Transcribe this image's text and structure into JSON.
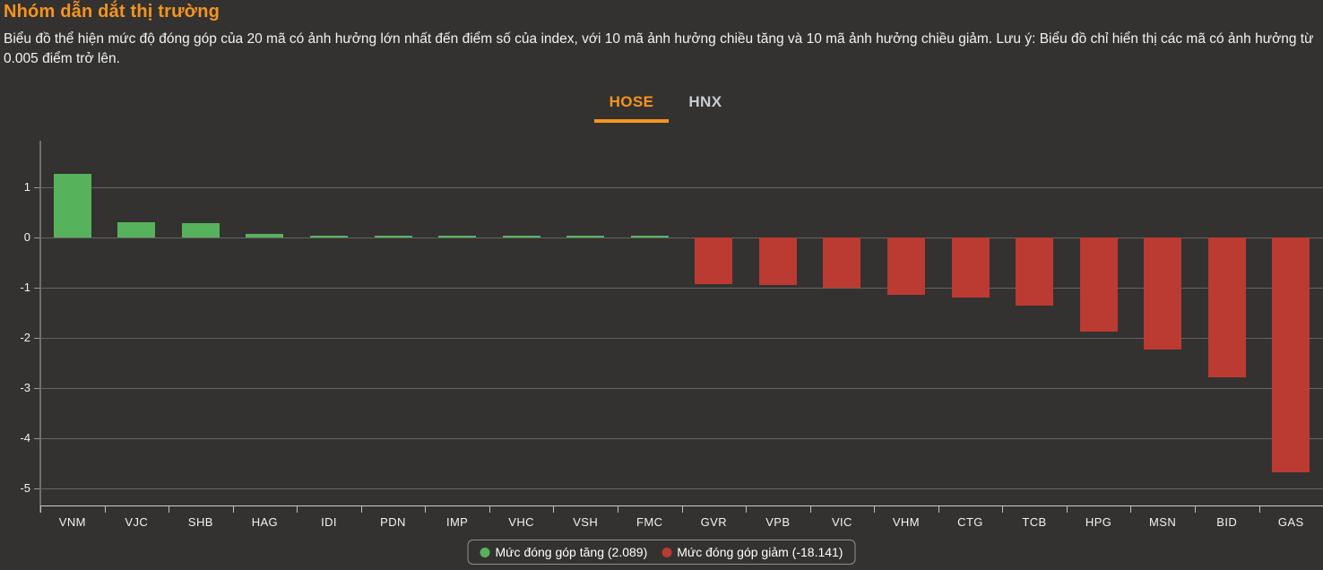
{
  "header": {
    "title": "Nhóm dẫn dắt thị trường",
    "description": "Biểu đồ thể hiện mức độ đóng góp của 20 mã có ảnh hưởng lớn nhất đến điểm số của index, với 10 mã ảnh hưởng chiều tăng và 10 mã ảnh hưởng chiều giảm. Lưu ý: Biểu đồ chỉ hiển thị các mã có ảnh hưởng từ 0.005 điểm trở lên."
  },
  "tabs": [
    {
      "label": "HOSE",
      "active": true
    },
    {
      "label": "HNX",
      "active": false
    }
  ],
  "colors": {
    "accent_orange": "#f7941d",
    "positive_green": "#57b25c",
    "negative_red": "#bb3a31",
    "background": "#333231",
    "gridline": "#646464",
    "axis": "#c9c9c9",
    "inactive_tab": "#c9cdd1"
  },
  "chart_data": {
    "type": "bar",
    "categories": [
      "VNM",
      "VJC",
      "SHB",
      "HAG",
      "IDI",
      "PDN",
      "IMP",
      "VHC",
      "VSH",
      "FMC",
      "GVR",
      "VPB",
      "VIC",
      "VHM",
      "CTG",
      "TCB",
      "HPG",
      "MSN",
      "BID",
      "GAS"
    ],
    "values": [
      1.251,
      0.29,
      0.272,
      0.064,
      0.036,
      0.036,
      0.036,
      0.035,
      0.035,
      0.034,
      -0.93,
      -0.95,
      -0.995,
      -1.145,
      -1.195,
      -1.355,
      -1.875,
      -2.235,
      -2.785,
      -4.676
    ],
    "positive_total": 2.089,
    "negative_total": -18.141,
    "positive_color": "#57b25c",
    "negative_color": "#bb3a31",
    "yticks": [
      1,
      0,
      -1,
      -2,
      -3,
      -4,
      -5
    ],
    "ylim": [
      -5.33,
      1.9
    ],
    "grid": true,
    "xlabel": "",
    "ylabel": "",
    "legend_position": "bottom-center",
    "legend": [
      {
        "label": "Mức đóng góp tăng (2.089)",
        "color": "#57b25c"
      },
      {
        "label": "Mức đóng góp giảm (-18.141)",
        "color": "#bb3a31"
      }
    ]
  }
}
